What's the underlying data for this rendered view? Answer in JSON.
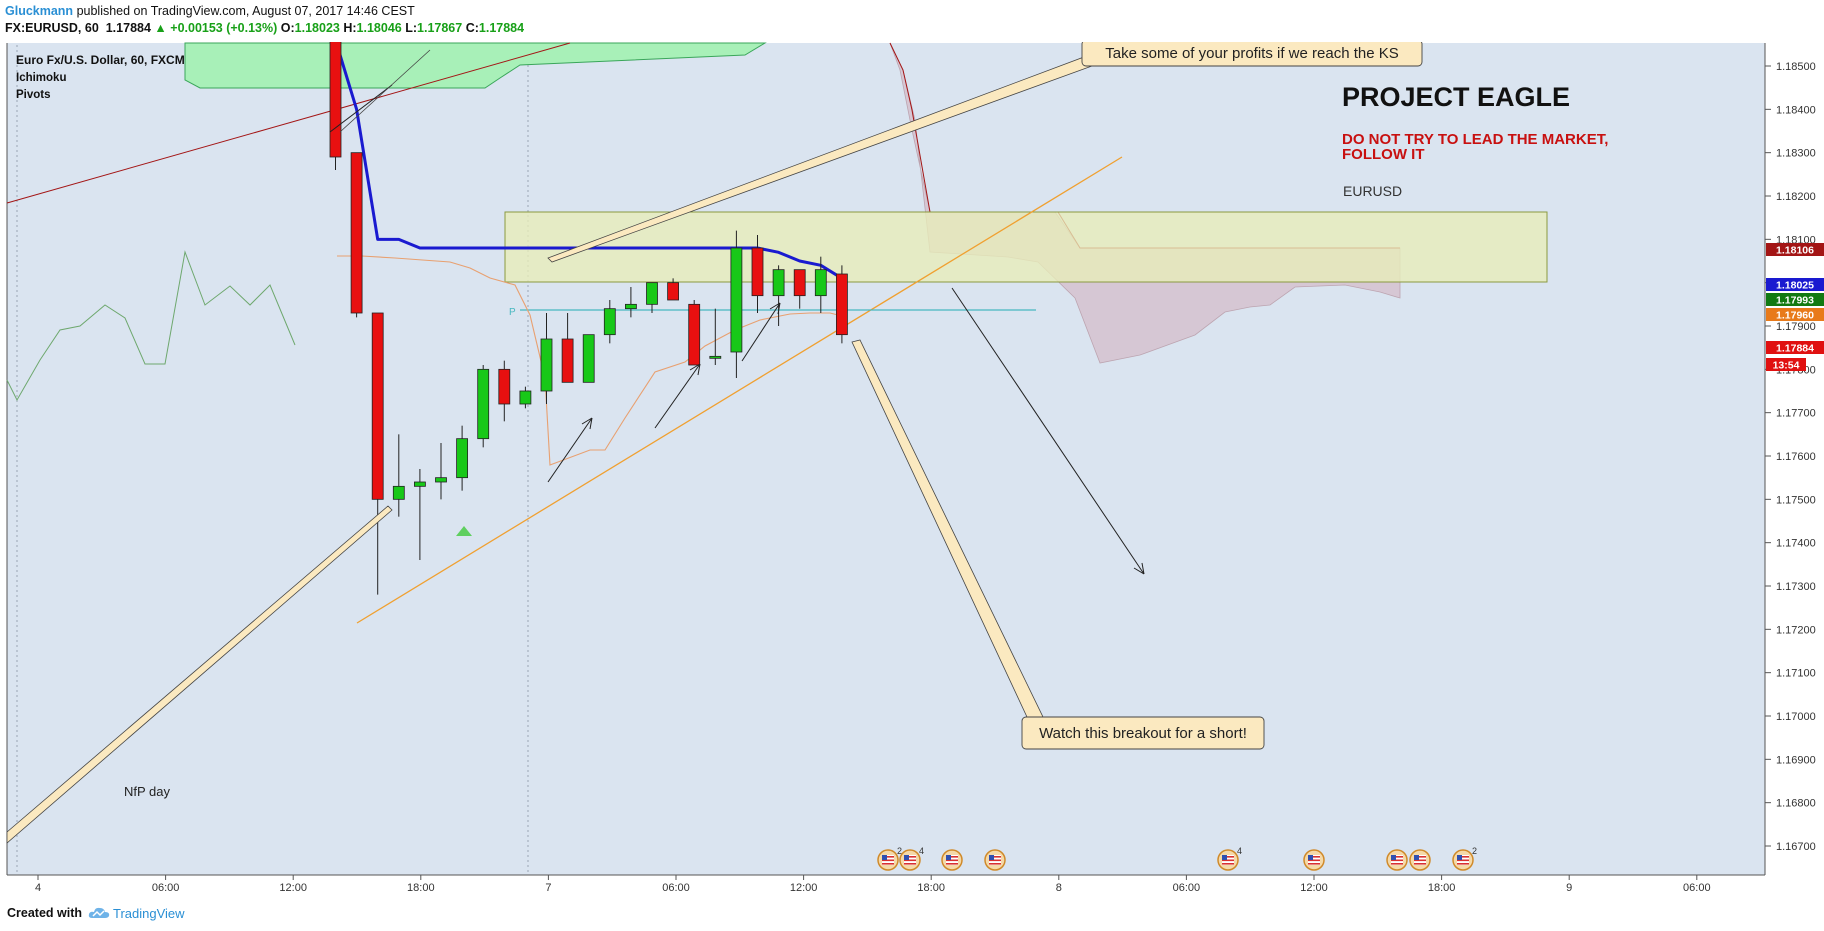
{
  "header": {
    "author": "Gluckmann",
    "published": "published on TradingView.com, August 07, 2017 14:46 CEST",
    "symbol": "FX:EURUSD, 60",
    "last": "1.17884",
    "change": "+0.00153 (+0.13%)",
    "open_label": "O:",
    "open": "1.18023",
    "high_label": "H:",
    "high": "1.18046",
    "low_label": "L:",
    "low": "1.17867",
    "close_label": "C:",
    "close": "1.17884"
  },
  "legend": {
    "title": "Euro Fx/U.S. Dollar, 60, FXCM",
    "indicators": [
      "Ichimoku",
      "Pivots"
    ]
  },
  "annotations": {
    "headline": "PROJECT EAGLE",
    "subhead": [
      "DO NOT TRY TO LEAD THE MARKET,",
      "FOLLOW IT"
    ],
    "symbol_note": "EURUSD",
    "callout_top": "Take some of your profits if we reach the KS",
    "callout_bottom": "Watch this breakout for a short!",
    "nfp": "NfP day",
    "pivot_marker": "P"
  },
  "price_labels": [
    {
      "value": "1.18106",
      "color": "#a31515"
    },
    {
      "value": "1.18025",
      "color": "#1a1ad0"
    },
    {
      "value": "1.17993",
      "color": "#127a12"
    },
    {
      "value": "1.17960",
      "color": "#e87a1a"
    },
    {
      "value": "1.17884",
      "color": "#e01010"
    },
    {
      "value": "13:54",
      "color": "#e01010"
    }
  ],
  "events": [
    {
      "badge": "2"
    },
    {
      "badge": "4"
    },
    {
      "badge": ""
    },
    {
      "badge": ""
    },
    {
      "badge": "4"
    },
    {
      "badge": ""
    },
    {
      "badge": ""
    },
    {
      "badge": ""
    },
    {
      "badge": "2"
    }
  ],
  "footer": {
    "created_with": "Created with",
    "brand": "TradingView"
  },
  "colors": {
    "plot_bg": "#dae4f0",
    "bull": "#18c818",
    "bear": "#e81010",
    "kijun": "#1a1ad0",
    "tenkan": "#e8a070",
    "resistance_zone": "#e8edb8",
    "trendline": "#f0a030",
    "pivot": "#48b8c0"
  },
  "chart_data": {
    "type": "candlestick",
    "title": "Euro Fx/U.S. Dollar, 60, FXCM",
    "interval": "60",
    "x_ticks": [
      "4",
      "06:00",
      "12:00",
      "18:00",
      "7",
      "06:00",
      "12:00",
      "18:00",
      "8",
      "06:00",
      "12:00",
      "18:00",
      "9",
      "06:00"
    ],
    "y_ticks": [
      "1.18500",
      "1.18400",
      "1.18300",
      "1.18200",
      "1.18100",
      "1.18000",
      "1.17900",
      "1.17800",
      "1.17700",
      "1.17600",
      "1.17500",
      "1.17400",
      "1.17300",
      "1.17200",
      "1.17100",
      "1.17000",
      "1.16900",
      "1.16800",
      "1.16700"
    ],
    "ylim": [
      1.1666,
      1.1856
    ],
    "start_label": "Aug 04 2017 14:00",
    "candles": [
      {
        "o": 1.1856,
        "h": 1.1856,
        "l": 1.1826,
        "c": 1.1829
      },
      {
        "o": 1.183,
        "h": 1.183,
        "l": 1.1792,
        "c": 1.1793
      },
      {
        "o": 1.1793,
        "h": 1.1793,
        "l": 1.1728,
        "c": 1.175
      },
      {
        "o": 1.175,
        "h": 1.1765,
        "l": 1.1746,
        "c": 1.1753
      },
      {
        "o": 1.1753,
        "h": 1.1757,
        "l": 1.1736,
        "c": 1.1754
      },
      {
        "o": 1.1754,
        "h": 1.1763,
        "l": 1.175,
        "c": 1.1755
      },
      {
        "o": 1.1755,
        "h": 1.1767,
        "l": 1.1752,
        "c": 1.1764
      },
      {
        "o": 1.1764,
        "h": 1.1781,
        "l": 1.1762,
        "c": 1.178
      },
      {
        "o": 1.178,
        "h": 1.1782,
        "l": 1.1768,
        "c": 1.1772
      },
      {
        "o": 1.1772,
        "h": 1.1776,
        "l": 1.1771,
        "c": 1.1775
      },
      {
        "o": 1.1775,
        "h": 1.1793,
        "l": 1.1772,
        "c": 1.1787
      },
      {
        "o": 1.1787,
        "h": 1.1793,
        "l": 1.1777,
        "c": 1.1777
      },
      {
        "o": 1.1777,
        "h": 1.1788,
        "l": 1.1777,
        "c": 1.1788
      },
      {
        "o": 1.1788,
        "h": 1.1796,
        "l": 1.1786,
        "c": 1.1794
      },
      {
        "o": 1.1794,
        "h": 1.1799,
        "l": 1.1792,
        "c": 1.1795
      },
      {
        "o": 1.1795,
        "h": 1.18,
        "l": 1.1793,
        "c": 1.18
      },
      {
        "o": 1.18,
        "h": 1.1801,
        "l": 1.1796,
        "c": 1.1796
      },
      {
        "o": 1.1795,
        "h": 1.1796,
        "l": 1.1781,
        "c": 1.1781
      },
      {
        "o": 1.1783,
        "h": 1.1794,
        "l": 1.1781,
        "c": 1.1783
      },
      {
        "o": 1.1784,
        "h": 1.1812,
        "l": 1.1778,
        "c": 1.1808
      },
      {
        "o": 1.1808,
        "h": 1.1811,
        "l": 1.1793,
        "c": 1.1797
      },
      {
        "o": 1.1797,
        "h": 1.1804,
        "l": 1.179,
        "c": 1.1803
      },
      {
        "o": 1.1803,
        "h": 1.1803,
        "l": 1.1794,
        "c": 1.1797
      },
      {
        "o": 1.1797,
        "h": 1.1806,
        "l": 1.1793,
        "c": 1.1803
      },
      {
        "o": 1.1802,
        "h": 1.1804,
        "l": 1.1786,
        "c": 1.1788
      }
    ],
    "kijun": [
      1.1856,
      1.184,
      1.181,
      1.181,
      1.1808,
      1.1808,
      1.1808,
      1.1808,
      1.1808,
      1.1808,
      1.1808,
      1.1808,
      1.1808,
      1.1808,
      1.1808,
      1.1808,
      1.1808,
      1.1808,
      1.1808,
      1.1808,
      1.1808,
      1.1807,
      1.1805,
      1.1804,
      1.1801
    ],
    "resistance_zone": [
      1.18025,
      1.18195
    ],
    "pivot": 1.17965
  }
}
